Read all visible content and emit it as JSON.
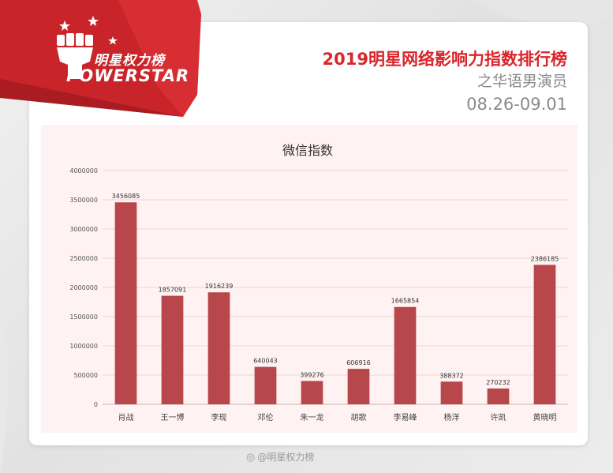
{
  "brand": {
    "logo_cn": "明星权力榜",
    "logo_en": "POWERSTAR",
    "accent": "#d9252b"
  },
  "header": {
    "title": "2019明星网络影响力指数排行榜",
    "subtitle": "之华语男演员",
    "date_range": "08.26-09.01"
  },
  "watermark": {
    "icon": "weibo-icon",
    "text": "@明星权力榜"
  },
  "chart_data": {
    "type": "bar",
    "title": "微信指数",
    "xlabel": "",
    "ylabel": "",
    "categories": [
      "肖战",
      "王一博",
      "李现",
      "邓伦",
      "朱一龙",
      "胡歌",
      "李易峰",
      "杨洋",
      "许凯",
      "黄晓明"
    ],
    "values": [
      3456085,
      1857091,
      1916239,
      640043,
      399276,
      606916,
      1665854,
      388372,
      270232,
      2386185
    ],
    "data_labels": [
      "3456085",
      "1857091",
      "1916239",
      "640043",
      "399276",
      "606916",
      "1665854",
      "388372",
      "270232",
      "2386185"
    ],
    "ylim": [
      0,
      4000000
    ],
    "yticks": [
      0,
      500000,
      1000000,
      1500000,
      2000000,
      2500000,
      3000000,
      3500000,
      4000000
    ],
    "ytick_labels": [
      "0",
      "500000",
      "1000000",
      "1500000",
      "2000000",
      "2500000",
      "3000000",
      "3500000",
      "4000000"
    ],
    "grid": true,
    "bar_color": "#b8474b",
    "background": "#fff2f2"
  }
}
